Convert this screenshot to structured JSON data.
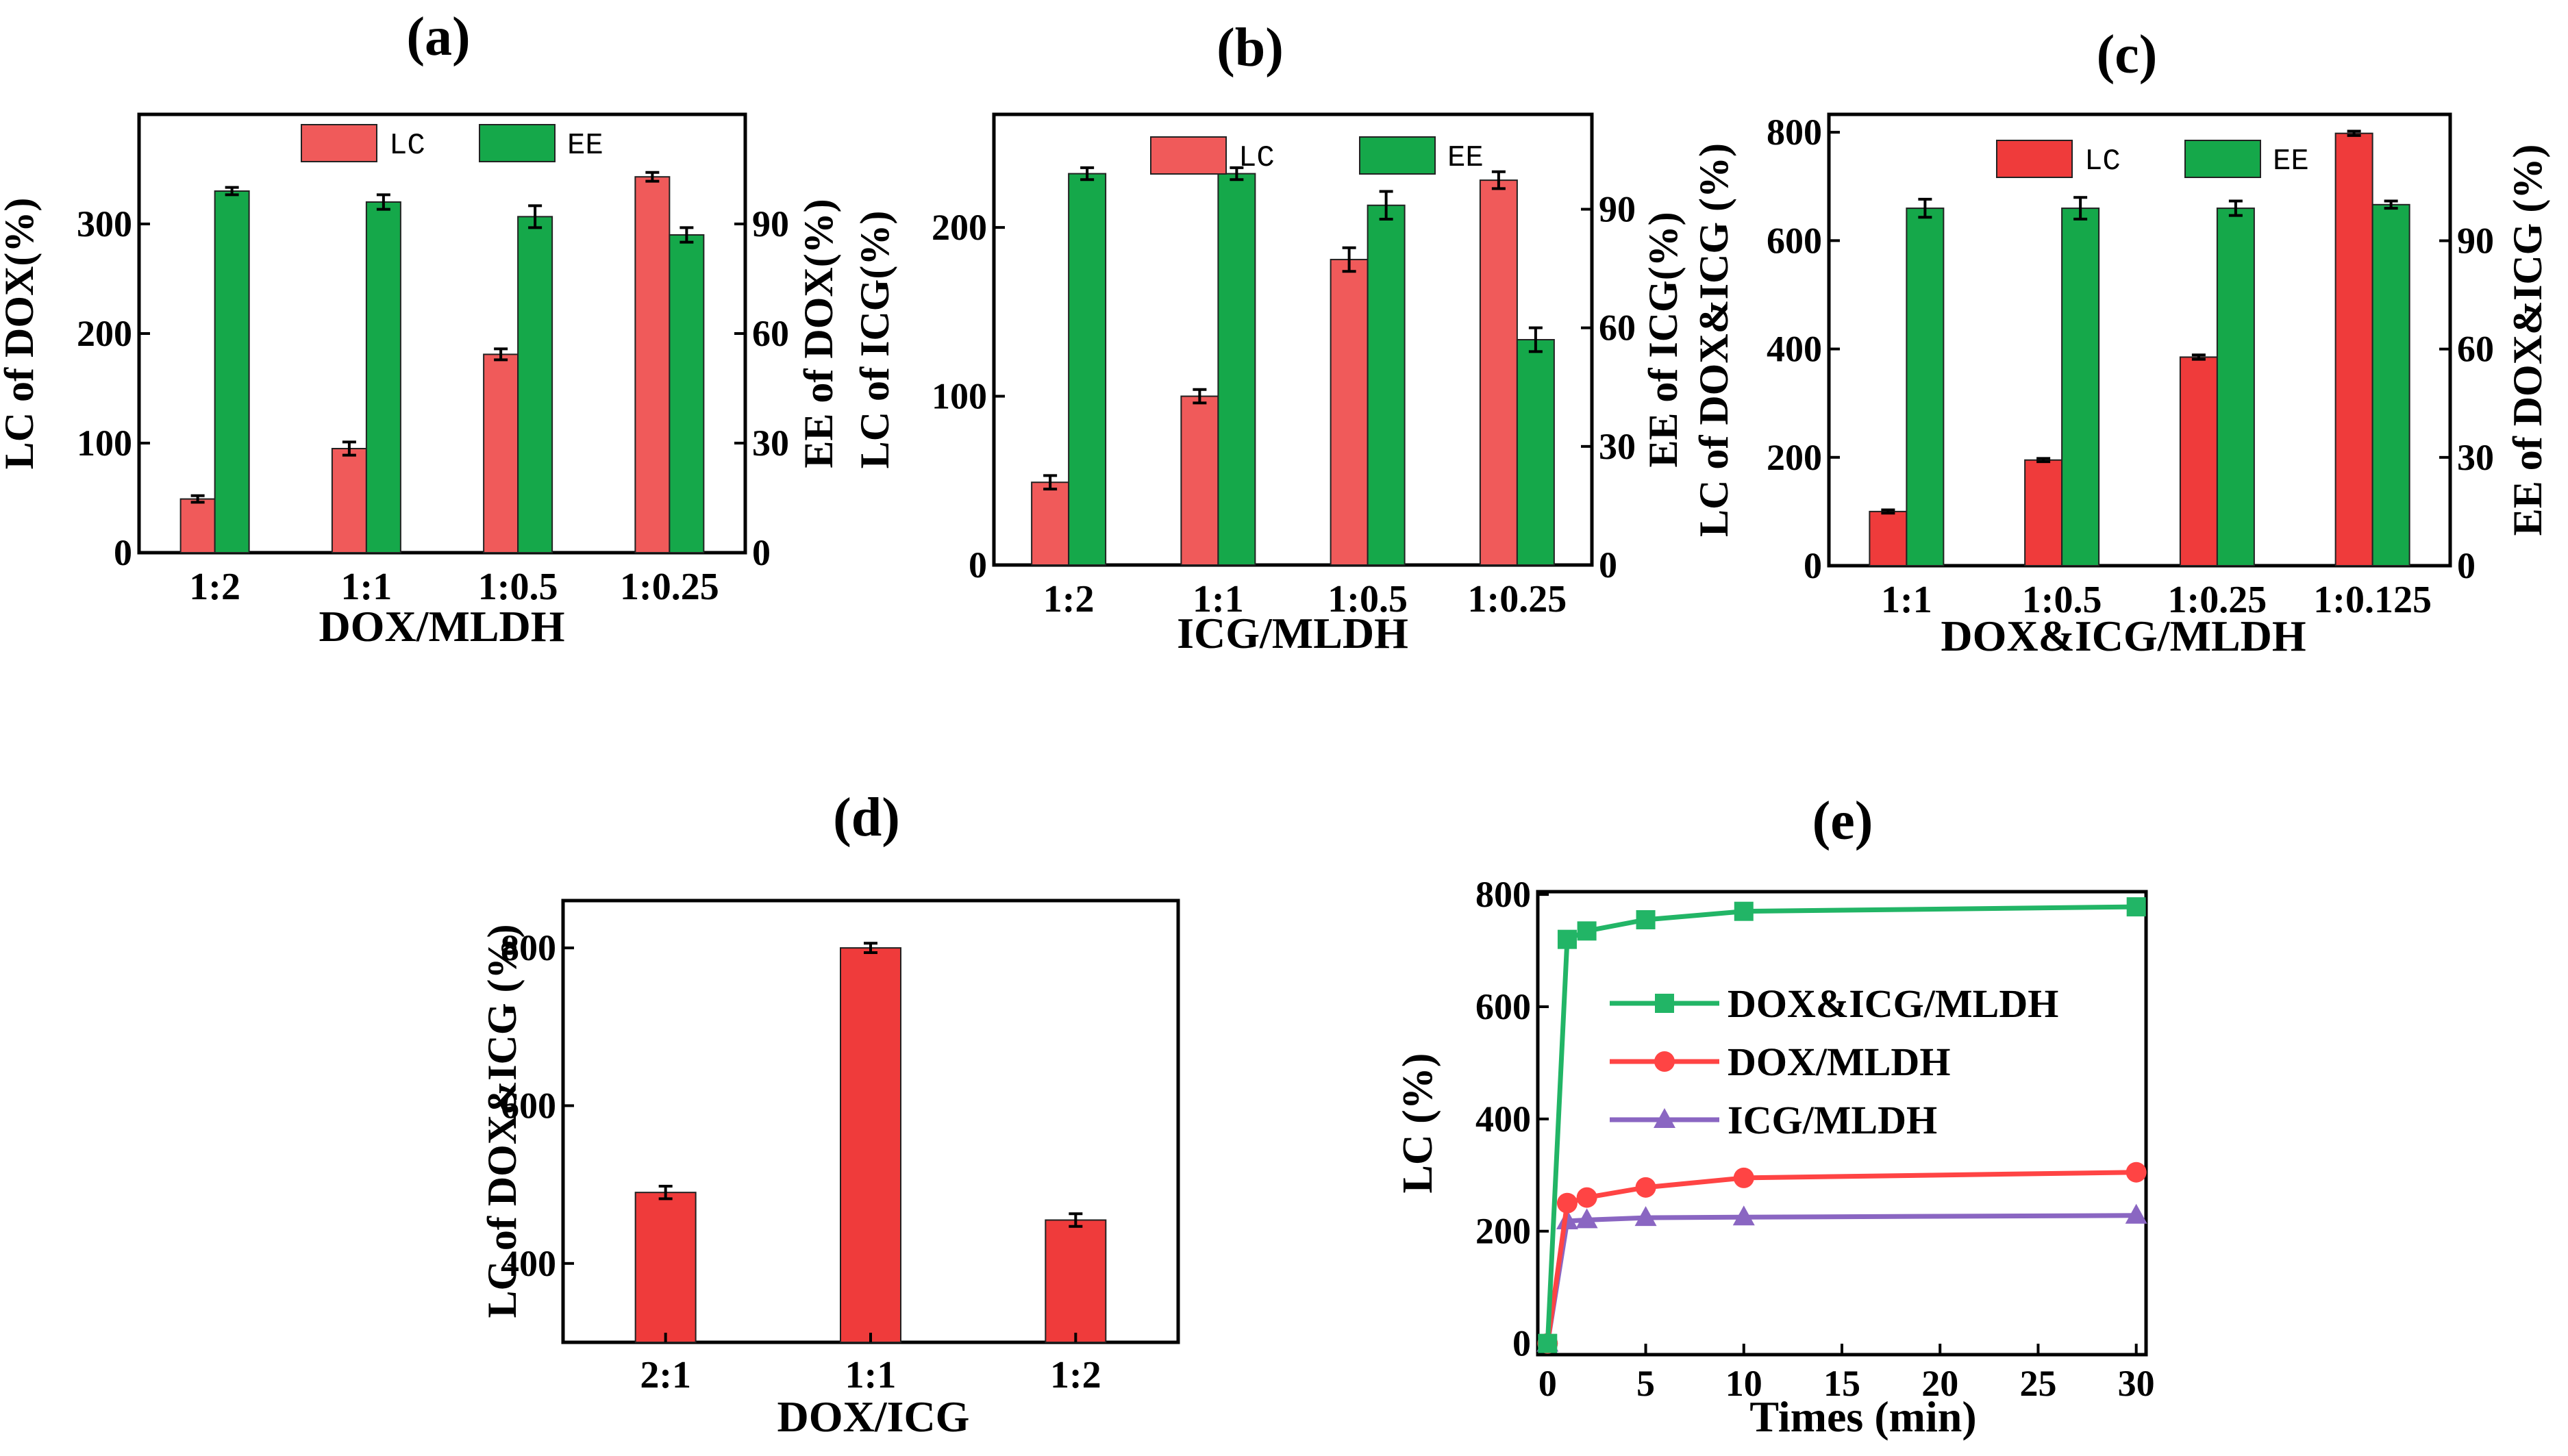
{
  "colors": {
    "lc": "#f05a5a",
    "lc_c": "#ef3b3b",
    "ee": "#15a84a",
    "line_dual": "#22b566",
    "line_dox": "#ff4444",
    "line_icg": "#8a66c2"
  },
  "chart_data": [
    {
      "panel": "(a)",
      "type": "bar",
      "categories": [
        "1:2",
        "1:1",
        "1:0.5",
        "1:0.25"
      ],
      "xlabel": "DOX/MLDH",
      "ylabel": "LC of DOX(%)",
      "y2label": "EE of DOX(%)",
      "ylim": [
        0,
        400
      ],
      "yticks": [
        "0",
        "100",
        "200",
        "300"
      ],
      "y2lim": [
        0,
        120
      ],
      "y2ticks": [
        "0",
        "30",
        "60",
        "90"
      ],
      "legend": [
        "LC",
        "EE"
      ],
      "series": [
        {
          "name": "LC",
          "axis": "left",
          "values": [
            49,
            95,
            181,
            343
          ],
          "errors": [
            3,
            6,
            5,
            4
          ]
        },
        {
          "name": "EE",
          "axis": "right",
          "values": [
            99,
            96,
            92,
            87
          ],
          "errors": [
            1,
            2,
            3,
            2
          ]
        }
      ]
    },
    {
      "panel": "(b)",
      "type": "bar",
      "categories": [
        "1:2",
        "1:1",
        "1:0.5",
        "1:0.25"
      ],
      "xlabel": "ICG/MLDH",
      "ylabel": "LC of ICG(%)",
      "y2label": "EE of ICG(%)",
      "ylim": [
        0,
        267
      ],
      "yticks": [
        "0",
        "100",
        "200"
      ],
      "y2lim": [
        0,
        114
      ],
      "y2ticks": [
        "0",
        "30",
        "60",
        "90"
      ],
      "legend": [
        "LC",
        "EE"
      ],
      "series": [
        {
          "name": "LC",
          "axis": "left",
          "values": [
            49,
            100,
            181,
            228
          ],
          "errors": [
            4,
            4,
            7,
            5
          ]
        },
        {
          "name": "EE",
          "axis": "right",
          "values": [
            99,
            99,
            91,
            57
          ],
          "errors": [
            1.5,
            1.5,
            3.5,
            3
          ]
        }
      ]
    },
    {
      "panel": "(c)",
      "type": "bar",
      "categories": [
        "1:1",
        "1:0.5",
        "1:0.25",
        "1:0.125"
      ],
      "xlabel": "DOX&ICG/MLDH",
      "ylabel": "LC of DOX&ICG (%)",
      "y2label": "EE of DOX&ICG (%)",
      "ylim": [
        0,
        833
      ],
      "yticks": [
        "0",
        "200",
        "400",
        "600",
        "800"
      ],
      "y2lim": [
        0,
        125
      ],
      "y2ticks": [
        "0",
        "30",
        "60",
        "90"
      ],
      "legend": [
        "LC",
        "EE"
      ],
      "series": [
        {
          "name": "LC",
          "axis": "left",
          "values": [
            100,
            195,
            385,
            798
          ],
          "errors": [
            3,
            3,
            4,
            4
          ]
        },
        {
          "name": "EE",
          "axis": "right",
          "values": [
            99,
            99,
            99,
            100
          ],
          "errors": [
            2.5,
            3,
            2,
            1
          ]
        }
      ]
    },
    {
      "panel": "(d)",
      "type": "bar",
      "categories": [
        "2:1",
        "1:1",
        "1:2"
      ],
      "xlabel": "DOX/ICG",
      "ylabel": "LC of DOX&ICG (%)",
      "ylim": [
        300,
        860
      ],
      "yticks": [
        "400",
        "600",
        "800"
      ],
      "series": [
        {
          "name": "LC",
          "values": [
            490,
            800,
            455
          ],
          "errors": [
            8,
            6,
            8
          ]
        }
      ]
    },
    {
      "panel": "(e)",
      "type": "line",
      "xlabel": "Times (min)",
      "ylabel": "LC (%)",
      "xlim": [
        -0.5,
        30.5
      ],
      "ylim": [
        -20,
        805
      ],
      "xticks": [
        "0",
        "5",
        "10",
        "15",
        "20",
        "25",
        "30"
      ],
      "yticks": [
        "0",
        "200",
        "400",
        "600",
        "800"
      ],
      "series": [
        {
          "name": "DOX&ICG/MLDH",
          "marker": "square",
          "x": [
            0,
            1,
            2,
            5,
            10,
            30
          ],
          "y": [
            0,
            720,
            735,
            755,
            770,
            778
          ]
        },
        {
          "name": "DOX/MLDH",
          "marker": "circle",
          "x": [
            0,
            1,
            2,
            5,
            10,
            30
          ],
          "y": [
            0,
            250,
            260,
            278,
            295,
            305
          ]
        },
        {
          "name": "ICG/MLDH",
          "marker": "triangle",
          "x": [
            0,
            1,
            2,
            5,
            10,
            30
          ],
          "y": [
            0,
            218,
            220,
            224,
            225,
            228
          ]
        }
      ]
    }
  ]
}
